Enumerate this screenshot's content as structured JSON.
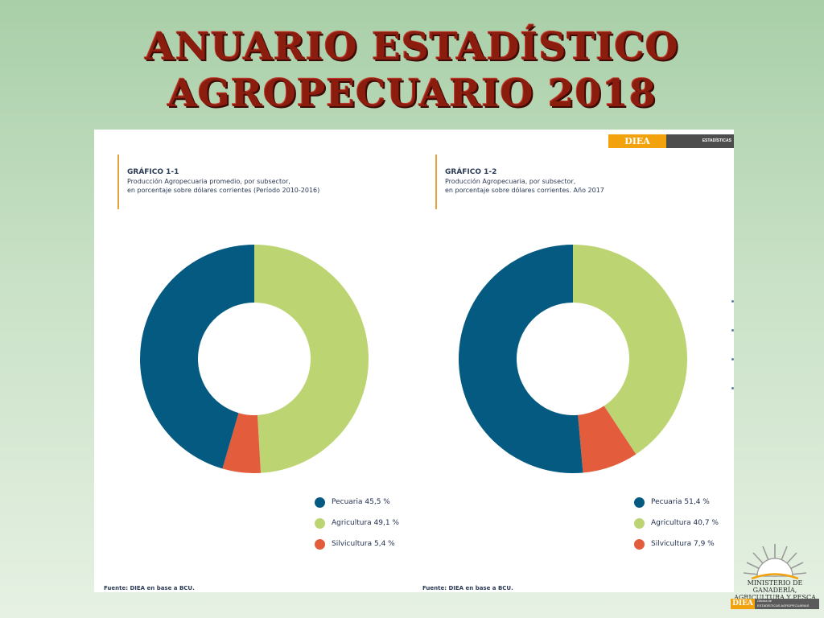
{
  "slide": {
    "title_line1": "Anuario Estadístico",
    "title_line2": "Agropecuario 2018"
  },
  "header": {
    "diea": "DIEA",
    "estadisticas": "ESTADÍSTICAS AGROPECUARIAS"
  },
  "colors": {
    "pecuaria": "#045a80",
    "agricultura": "#bdd473",
    "silvicultura": "#e35c3b"
  },
  "chart_data": [
    {
      "type": "pie",
      "id": "grafico-1-1",
      "caption": {
        "title": "GRÁFICO 1-1",
        "line1": "Producción Agropecuaria promedio, por subsector,",
        "line2": "en porcentaje sobre dólares corrientes (Período 2010-2016)"
      },
      "slices": [
        {
          "key": "agricultura",
          "value": 49.1
        },
        {
          "key": "silvicultura",
          "value": 5.4
        },
        {
          "key": "pecuaria",
          "value": 45.5
        }
      ],
      "legend": [
        {
          "key": "pecuaria",
          "label": "Pecuaria 45,5 %"
        },
        {
          "key": "agricultura",
          "label": "Agricultura 49,1 %"
        },
        {
          "key": "silvicultura",
          "label": "Silvicultura 5,4 %"
        }
      ],
      "source": "Fuente: DIEA en base a BCU."
    },
    {
      "type": "pie",
      "id": "grafico-1-2",
      "caption": {
        "title": "GRÁFICO 1-2",
        "line1": "Producción Agropecuaria, por subsector,",
        "line2": "en porcentaje sobre dólares corrientes. Año 2017"
      },
      "slices": [
        {
          "key": "agricultura",
          "value": 40.7
        },
        {
          "key": "silvicultura",
          "value": 7.9
        },
        {
          "key": "pecuaria",
          "value": 51.4
        }
      ],
      "legend": [
        {
          "key": "pecuaria",
          "label": "Pecuaria 51,4 %"
        },
        {
          "key": "agricultura",
          "label": "Agricultura 40,7 %"
        },
        {
          "key": "silvicultura",
          "label": "Silvicultura 7,9 %"
        }
      ],
      "source": "Fuente: DIEA en base a BCU."
    }
  ],
  "ministry": {
    "name_line1": "MINISTERIO DE GANADERÍA,",
    "name_line2": "AGRICULTURA Y PESCA",
    "diea": "DIEA",
    "oficina_line1": "Oficina de",
    "oficina_line2": "ESTADÍSTICAS AGROPECUARIAS"
  }
}
